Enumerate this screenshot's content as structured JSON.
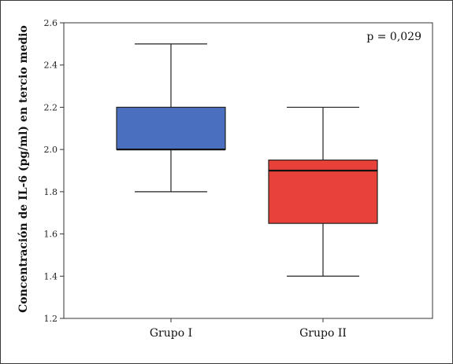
{
  "chart_data": {
    "type": "box",
    "ylabel": "Concentración de IL-6 (pg/ml) en tercio medio",
    "xlabel": "",
    "ylim": [
      1.2,
      2.6
    ],
    "yticks": [
      1.2,
      1.4,
      1.6,
      1.8,
      2.0,
      2.2,
      2.4,
      2.6
    ],
    "ytick_labels": [
      "1.2",
      "1.4",
      "1.6",
      "1.8",
      "2.0",
      "2.2",
      "2.4",
      "2.6"
    ],
    "annotation": "p = 0,029",
    "grid": false,
    "categories": [
      "Grupo I",
      "Grupo II"
    ],
    "boxes": [
      {
        "category": "Grupo I",
        "whisker_low": 1.8,
        "q1": 2.0,
        "median": 2.0,
        "q3": 2.2,
        "whisker_high": 2.5,
        "color": "#4a6fbf"
      },
      {
        "category": "Grupo II",
        "whisker_low": 1.4,
        "q1": 1.65,
        "median": 1.9,
        "q3": 1.95,
        "whisker_high": 2.2,
        "color": "#e8413a"
      }
    ]
  }
}
